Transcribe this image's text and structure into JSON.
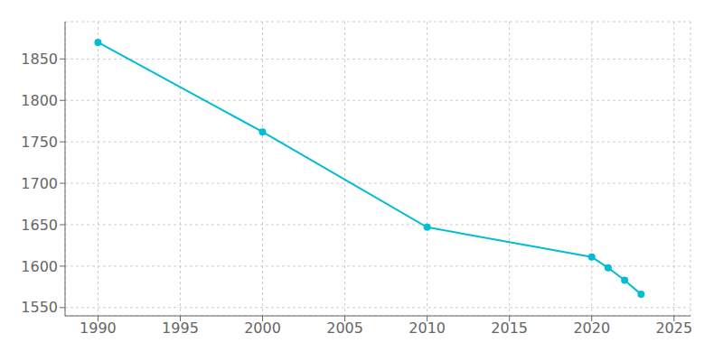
{
  "chart_data": {
    "type": "line",
    "x": [
      1990,
      2000,
      2010,
      2020,
      2021,
      2022,
      2023
    ],
    "values": [
      1870,
      1762,
      1647,
      1611,
      1598,
      1583,
      1566
    ],
    "color": "#00BCD4",
    "marker": "circle",
    "xlim": [
      1988,
      2026
    ],
    "ylim": [
      1540,
      1895
    ],
    "xticks": [
      1990,
      1995,
      2000,
      2005,
      2010,
      2015,
      2020,
      2025
    ],
    "yticks": [
      1550,
      1600,
      1650,
      1700,
      1750,
      1800,
      1850
    ],
    "grid": true
  }
}
